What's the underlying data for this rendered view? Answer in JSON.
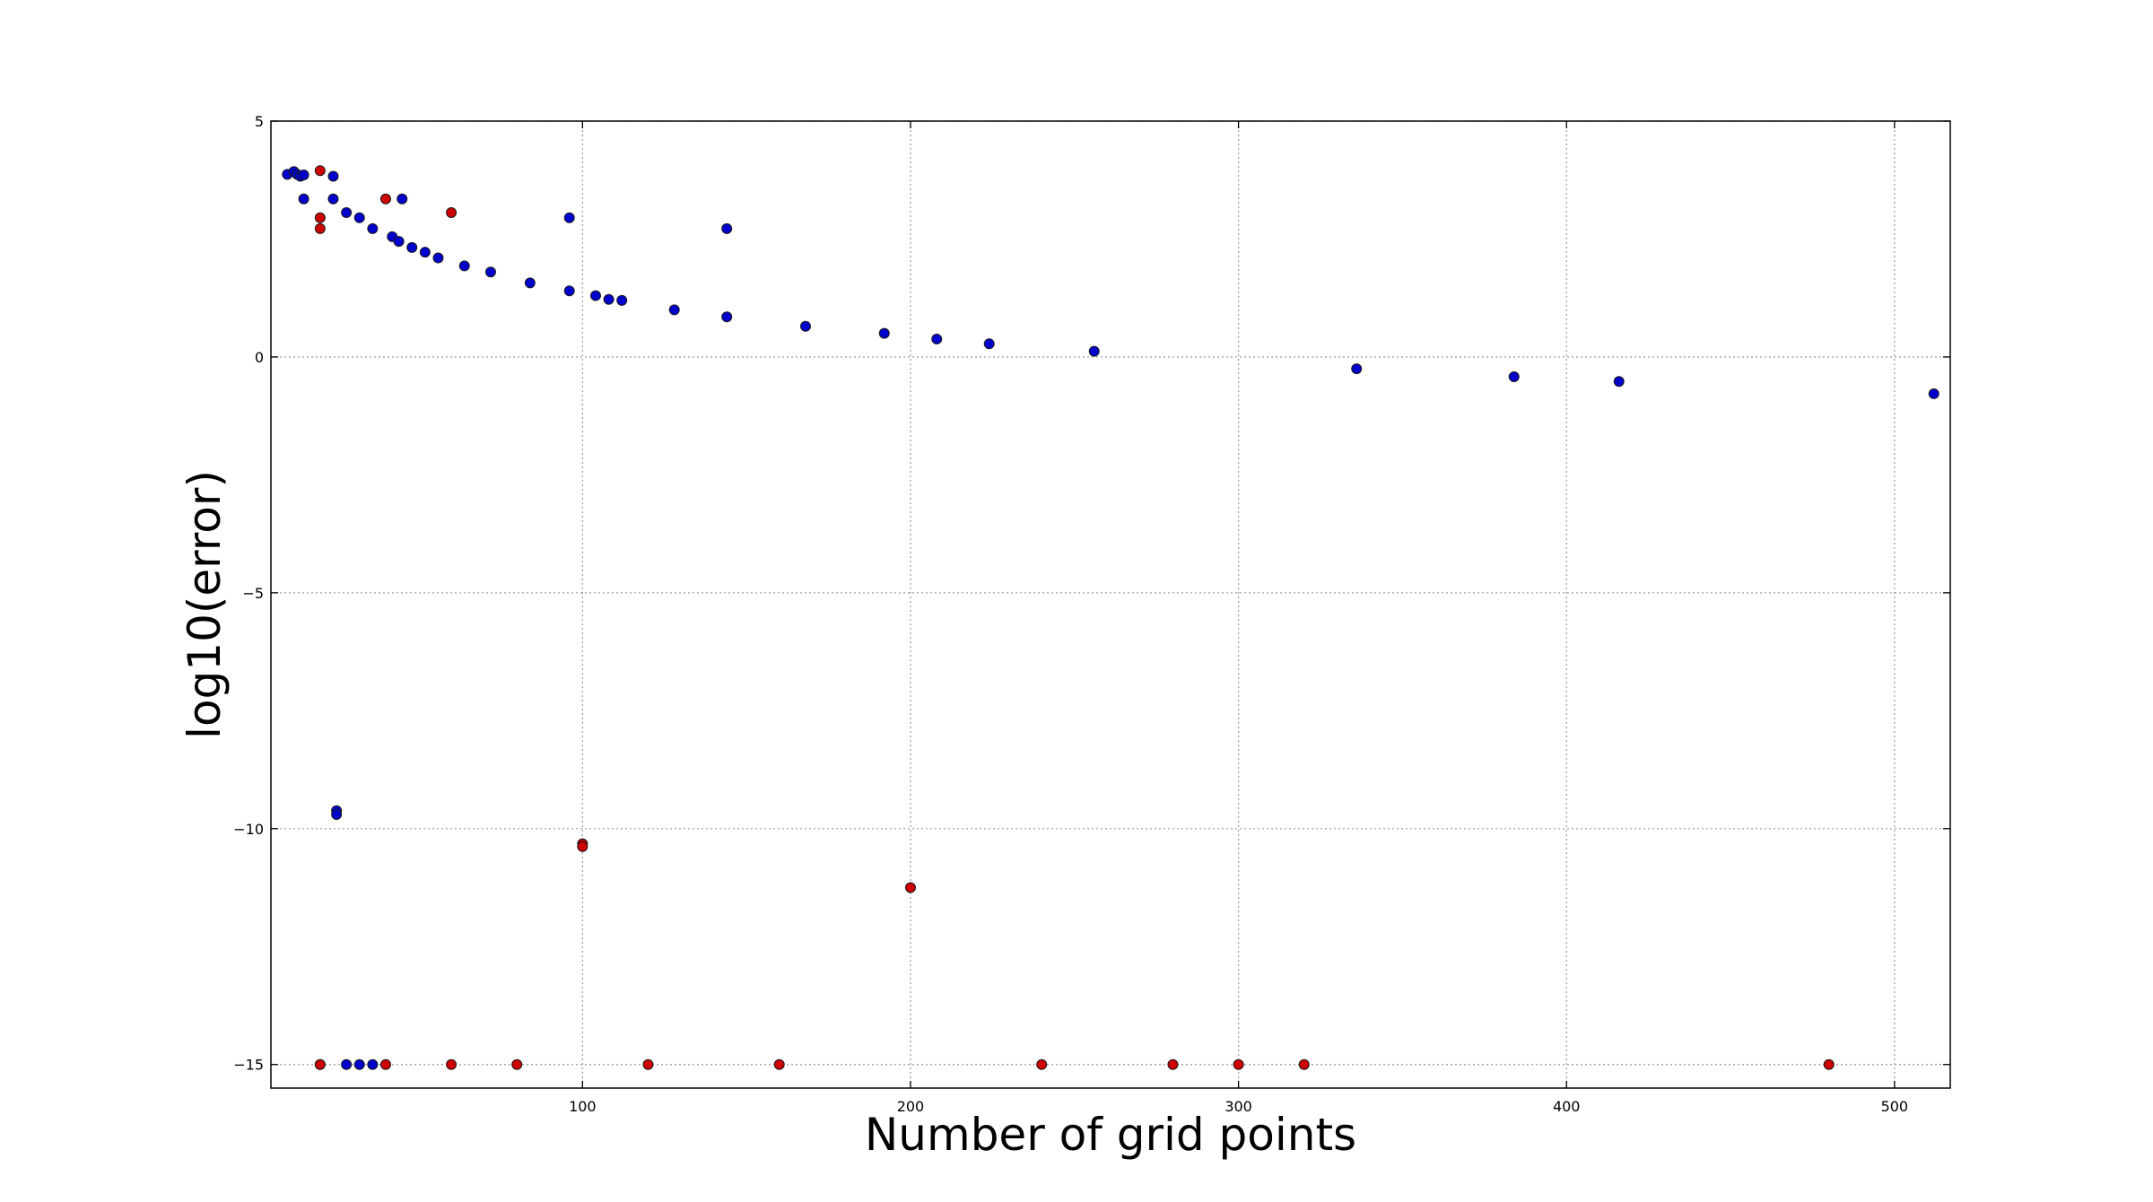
{
  "chart_data": {
    "type": "scatter",
    "title": "",
    "xlabel": "Number of grid points",
    "ylabel": "log10(error)",
    "xlim": [
      5,
      517
    ],
    "ylim": [
      -15.5,
      5
    ],
    "xticks": [
      100,
      200,
      300,
      400,
      500
    ],
    "yticks": [
      5,
      0,
      -5,
      -10,
      -15
    ],
    "grid": true,
    "colors": {
      "blue": "#0000cc",
      "red": "#cc0000",
      "edge": "#1a1a1a",
      "grid": "#a0a0a0"
    },
    "series": [
      {
        "color": "blue",
        "points": [
          [
            10,
            3.87
          ],
          [
            12,
            3.93
          ],
          [
            13,
            3.87
          ],
          [
            14,
            3.83
          ],
          [
            15,
            3.86
          ],
          [
            15,
            3.35
          ],
          [
            24,
            3.83
          ],
          [
            24,
            3.35
          ],
          [
            28,
            3.06
          ],
          [
            32,
            2.95
          ],
          [
            36,
            2.72
          ],
          [
            42,
            2.55
          ],
          [
            44,
            2.45
          ],
          [
            45,
            3.35
          ],
          [
            48,
            2.32
          ],
          [
            52,
            2.22
          ],
          [
            56,
            2.1
          ],
          [
            64,
            1.93
          ],
          [
            72,
            1.8
          ],
          [
            84,
            1.57
          ],
          [
            96,
            1.4
          ],
          [
            96,
            2.95
          ],
          [
            104,
            1.3
          ],
          [
            108,
            1.22
          ],
          [
            112,
            1.2
          ],
          [
            128,
            1.0
          ],
          [
            144,
            0.85
          ],
          [
            144,
            2.72
          ],
          [
            168,
            0.65
          ],
          [
            192,
            0.5
          ],
          [
            208,
            0.38
          ],
          [
            224,
            0.28
          ],
          [
            256,
            0.12
          ],
          [
            336,
            -0.25
          ],
          [
            384,
            -0.42
          ],
          [
            416,
            -0.52
          ],
          [
            512,
            -0.78
          ],
          [
            25,
            -9.62
          ],
          [
            25,
            -9.7
          ],
          [
            20,
            -15
          ],
          [
            28,
            -15
          ],
          [
            32,
            -15
          ],
          [
            36,
            -15
          ]
        ]
      },
      {
        "color": "red",
        "points": [
          [
            20,
            3.95
          ],
          [
            20,
            2.95
          ],
          [
            20,
            2.72
          ],
          [
            40,
            3.35
          ],
          [
            60,
            3.06
          ],
          [
            100,
            -10.32
          ],
          [
            100,
            -10.38
          ],
          [
            200,
            -11.25
          ],
          [
            20,
            -15
          ],
          [
            40,
            -15
          ],
          [
            60,
            -15
          ],
          [
            80,
            -15
          ],
          [
            120,
            -15
          ],
          [
            160,
            -15
          ],
          [
            240,
            -15
          ],
          [
            280,
            -15
          ],
          [
            300,
            -15
          ],
          [
            320,
            -15
          ],
          [
            480,
            -15
          ]
        ]
      }
    ]
  }
}
